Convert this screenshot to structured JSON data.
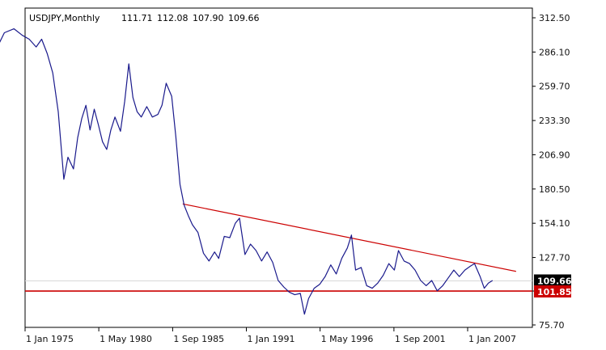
{
  "chart_data": {
    "type": "line",
    "title": "USDJPY,Monthly",
    "ohlc": [
      "111.71",
      "112.08",
      "107.90",
      "109.66"
    ],
    "y_ticks": [
      "312.50",
      "286.10",
      "259.70",
      "233.30",
      "206.90",
      "180.50",
      "154.10",
      "127.70",
      "101.85",
      "75.70"
    ],
    "x_ticks": [
      "1 Jan 1975",
      "1 May 1980",
      "1 Sep 1985",
      "1 Jan 1991",
      "1 May 1996",
      "1 Sep 2001",
      "1 Jan 2007"
    ],
    "ylim": [
      75.7,
      312.5
    ],
    "grid": false,
    "current_price": "109.66",
    "support_level": "101.85",
    "colors": {
      "series": "#1a1a8c",
      "trendline": "#cc0000",
      "support": "#cc0000",
      "current_badge": "#000000",
      "support_badge": "#cc0000",
      "axis": "#000000"
    },
    "series": [
      {
        "values": [
          [
            1973.0,
            290.0
          ],
          [
            1973.5,
            301.0
          ],
          [
            1974.2,
            304.0
          ],
          [
            1974.8,
            299.0
          ],
          [
            1975.3,
            296.0
          ],
          [
            1975.8,
            290.0
          ],
          [
            1976.2,
            296.0
          ],
          [
            1976.6,
            285.0
          ],
          [
            1977.0,
            270.0
          ],
          [
            1977.4,
            240.0
          ],
          [
            1977.8,
            188.0
          ],
          [
            1978.1,
            205.0
          ],
          [
            1978.5,
            196.0
          ],
          [
            1978.8,
            220.0
          ],
          [
            1979.1,
            235.0
          ],
          [
            1979.4,
            245.0
          ],
          [
            1979.7,
            226.0
          ],
          [
            1980.0,
            242.0
          ],
          [
            1980.3,
            230.0
          ],
          [
            1980.6,
            217.0
          ],
          [
            1980.9,
            211.0
          ],
          [
            1981.2,
            226.0
          ],
          [
            1981.5,
            236.0
          ],
          [
            1981.9,
            225.0
          ],
          [
            1982.2,
            248.0
          ],
          [
            1982.5,
            277.0
          ],
          [
            1982.8,
            251.0
          ],
          [
            1983.1,
            240.0
          ],
          [
            1983.4,
            236.0
          ],
          [
            1983.8,
            244.0
          ],
          [
            1984.2,
            236.0
          ],
          [
            1984.6,
            238.0
          ],
          [
            1984.9,
            245.0
          ],
          [
            1985.2,
            262.0
          ],
          [
            1985.6,
            252.0
          ],
          [
            1985.9,
            221.0
          ],
          [
            1986.2,
            184.0
          ],
          [
            1986.5,
            168.0
          ],
          [
            1986.8,
            160.0
          ],
          [
            1987.1,
            153.0
          ],
          [
            1987.5,
            147.0
          ],
          [
            1987.9,
            131.0
          ],
          [
            1988.3,
            125.0
          ],
          [
            1988.7,
            132.0
          ],
          [
            1989.0,
            127.0
          ],
          [
            1989.4,
            144.0
          ],
          [
            1989.8,
            143.0
          ],
          [
            1990.2,
            154.0
          ],
          [
            1990.5,
            158.0
          ],
          [
            1990.9,
            130.0
          ],
          [
            1991.3,
            138.0
          ],
          [
            1991.7,
            133.0
          ],
          [
            1992.1,
            125.0
          ],
          [
            1992.5,
            132.0
          ],
          [
            1992.9,
            124.0
          ],
          [
            1993.3,
            110.0
          ],
          [
            1993.7,
            105.0
          ],
          [
            1994.1,
            101.0
          ],
          [
            1994.5,
            99.0
          ],
          [
            1994.9,
            100.0
          ],
          [
            1995.2,
            84.0
          ],
          [
            1995.5,
            96.0
          ],
          [
            1995.9,
            104.0
          ],
          [
            1996.3,
            107.0
          ],
          [
            1996.7,
            113.0
          ],
          [
            1997.1,
            122.0
          ],
          [
            1997.5,
            115.0
          ],
          [
            1997.9,
            127.0
          ],
          [
            1998.3,
            135.0
          ],
          [
            1998.6,
            145.0
          ],
          [
            1998.9,
            118.0
          ],
          [
            1999.3,
            120.0
          ],
          [
            1999.7,
            106.0
          ],
          [
            2000.1,
            104.0
          ],
          [
            2000.5,
            108.0
          ],
          [
            2000.9,
            114.0
          ],
          [
            2001.3,
            123.0
          ],
          [
            2001.7,
            118.0
          ],
          [
            2002.0,
            133.0
          ],
          [
            2002.4,
            125.0
          ],
          [
            2002.8,
            123.0
          ],
          [
            2003.2,
            118.0
          ],
          [
            2003.6,
            110.0
          ],
          [
            2004.0,
            106.0
          ],
          [
            2004.4,
            110.0
          ],
          [
            2004.8,
            102.0
          ],
          [
            2005.2,
            106.0
          ],
          [
            2005.6,
            112.0
          ],
          [
            2006.0,
            118.0
          ],
          [
            2006.4,
            113.0
          ],
          [
            2006.8,
            118.0
          ],
          [
            2007.2,
            121.0
          ],
          [
            2007.5,
            123.0
          ],
          [
            2007.9,
            113.0
          ],
          [
            2008.2,
            104.0
          ],
          [
            2008.5,
            108.0
          ],
          [
            2008.8,
            110.0
          ]
        ]
      }
    ],
    "trendline": [
      [
        1986.4,
        169.0
      ],
      [
        2010.5,
        117.0
      ]
    ],
    "support_line_value": 101.85
  }
}
